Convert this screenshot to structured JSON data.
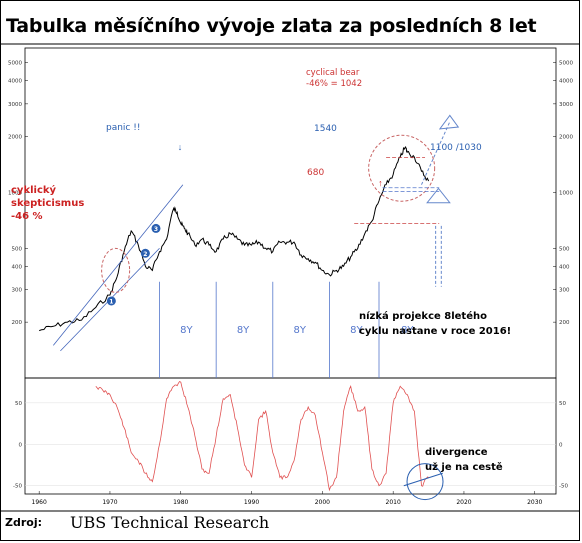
{
  "title": "Tabulka měsíčního vývoje zlata za posledních 8 let",
  "source": {
    "label": "Zdroj:",
    "value": "UBS Technical Research"
  },
  "colors": {
    "price": "#000000",
    "oscillator": "#e05050",
    "annotation_red": "#cc2222",
    "annotation_blue": "#2a5fb0",
    "guide_blue": "#5577cc",
    "circle": "#c86464"
  },
  "chart_data": [
    {
      "type": "line",
      "name": "gold-monthly-price",
      "scale": "log",
      "ylim": [
        100,
        6000
      ],
      "xlim": [
        1958,
        2033
      ],
      "y_ticks": [
        200,
        300,
        400,
        500,
        1000,
        2000,
        3000,
        4000,
        5000
      ],
      "x": [
        1960,
        1962,
        1964,
        1966,
        1968,
        1970,
        1971,
        1972,
        1973,
        1974,
        1975,
        1976,
        1977,
        1978,
        1979,
        1979.5,
        1980,
        1980.5,
        1981,
        1982,
        1983,
        1984,
        1985,
        1986,
        1987,
        1988,
        1989,
        1990,
        1991,
        1992,
        1993,
        1994,
        1995,
        1996,
        1997,
        1998,
        1999,
        2000,
        2001,
        2002,
        2003,
        2004,
        2005,
        2006,
        2007,
        2008,
        2009,
        2010,
        2011,
        2011.7,
        2012,
        2013,
        2014,
        2015
      ],
      "y": [
        180,
        190,
        200,
        205,
        240,
        280,
        350,
        480,
        620,
        520,
        400,
        380,
        480,
        560,
        820,
        780,
        680,
        640,
        600,
        520,
        560,
        520,
        480,
        560,
        600,
        560,
        520,
        520,
        540,
        500,
        480,
        540,
        540,
        540,
        460,
        440,
        420,
        380,
        360,
        380,
        400,
        450,
        500,
        600,
        700,
        900,
        1100,
        1250,
        1550,
        1750,
        1650,
        1550,
        1300,
        1150
      ]
    },
    {
      "type": "line",
      "name": "oscillator",
      "ylim": [
        -60,
        80
      ],
      "y_ticks": [
        -50,
        0,
        50
      ],
      "x": [
        1968,
        1969,
        1970,
        1971,
        1972,
        1973,
        1974,
        1975,
        1976,
        1977,
        1978,
        1979,
        1980,
        1981,
        1982,
        1983,
        1984,
        1985,
        1986,
        1987,
        1988,
        1989,
        1990,
        1991,
        1992,
        1993,
        1994,
        1995,
        1996,
        1997,
        1998,
        1999,
        2000,
        2001,
        2002,
        2003,
        2004,
        2005,
        2006,
        2007,
        2008,
        2009,
        2010,
        2011,
        2012,
        2013,
        2014,
        2015
      ],
      "y": [
        70,
        65,
        60,
        45,
        20,
        -10,
        -20,
        -35,
        -45,
        0,
        55,
        70,
        75,
        45,
        10,
        -30,
        -35,
        10,
        55,
        60,
        20,
        -25,
        -40,
        30,
        40,
        -10,
        -40,
        -40,
        -20,
        30,
        45,
        35,
        -10,
        -55,
        -40,
        40,
        70,
        40,
        45,
        -30,
        -50,
        -35,
        50,
        70,
        60,
        40,
        -50,
        -40
      ]
    }
  ],
  "x_axis": {
    "ticks": [
      "1960",
      "1970",
      "1980",
      "1990",
      "2000",
      "2010",
      "2020",
      "2030"
    ]
  },
  "annotations": {
    "cyklicky": [
      "cyklický",
      "skepticismus",
      "-46 %"
    ],
    "panic": "panic !!",
    "cyclical_bear": [
      "cyclical bear",
      "-46% = 1042"
    ],
    "level_1540": "1540",
    "level_680": "680",
    "level_1100": "1100 /1030",
    "cycles": [
      "8Y",
      "8Y",
      "8Y",
      "8Y",
      "8Y"
    ],
    "projection": [
      "nízká projekce 8letého",
      "cyklu nastane v roce 2016!"
    ],
    "divergence": [
      "divergence",
      "už je na cestě"
    ],
    "markers": [
      "1",
      "2",
      "3"
    ]
  }
}
